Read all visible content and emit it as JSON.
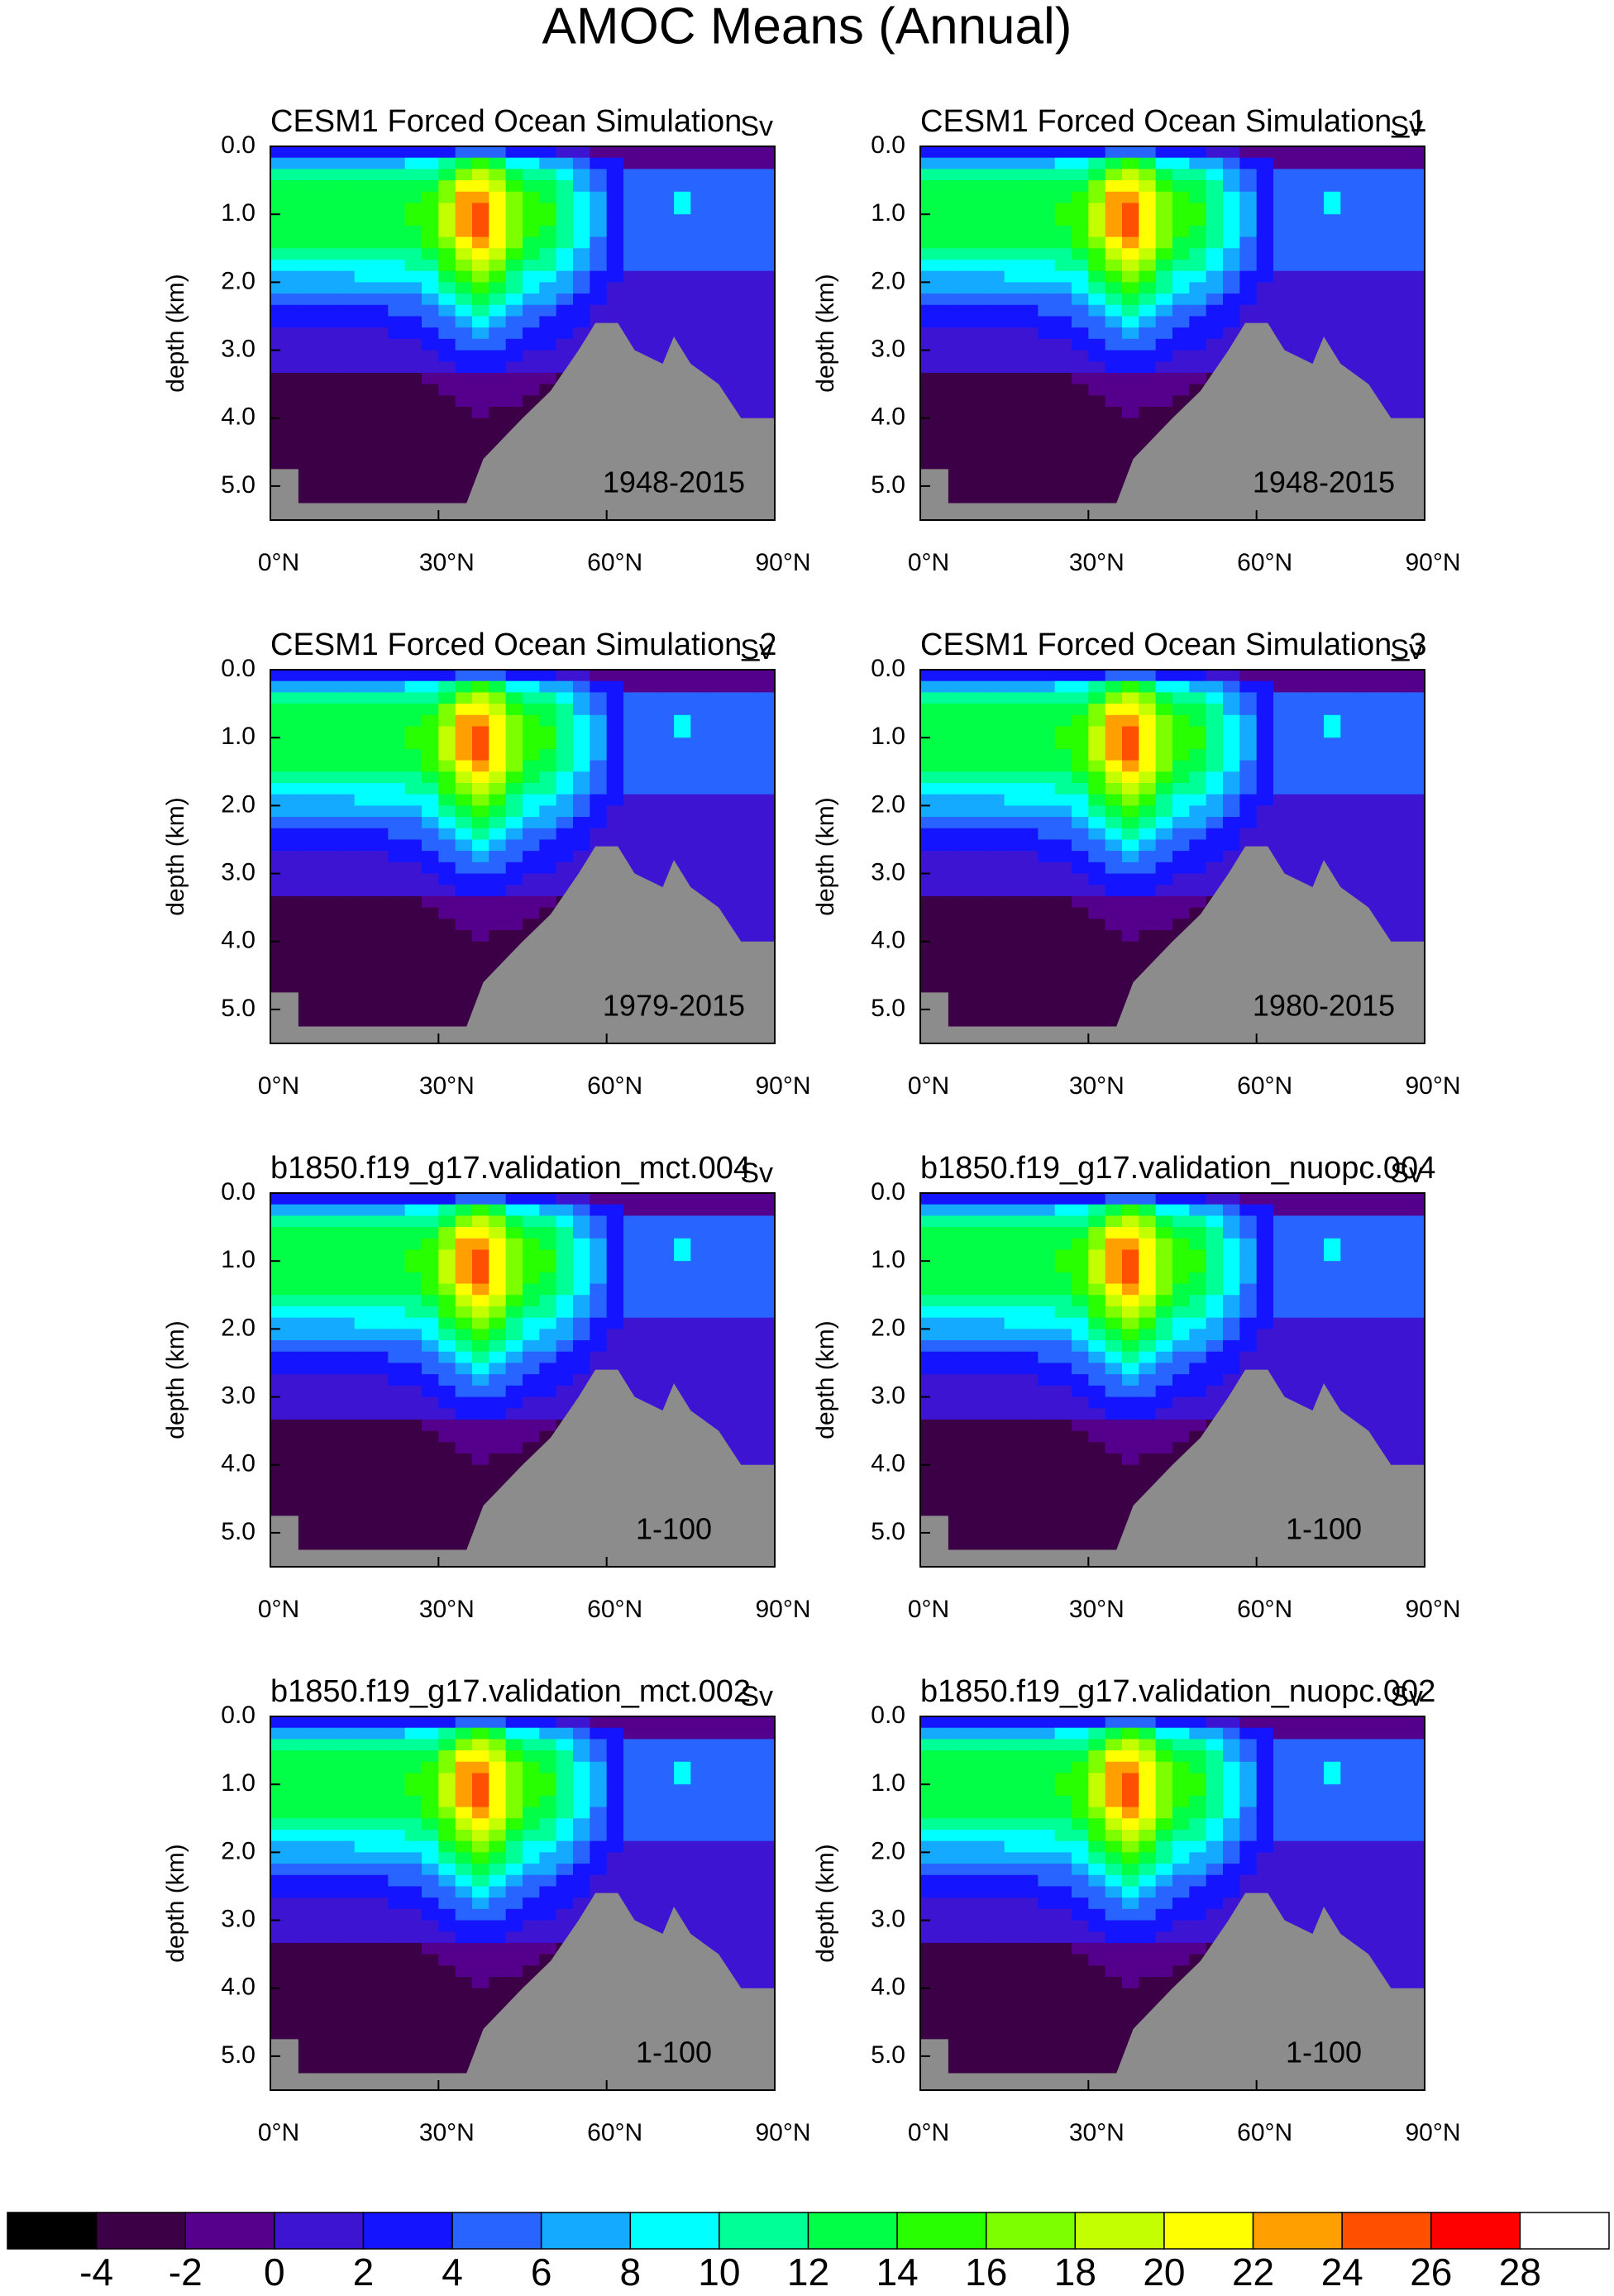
{
  "title": "AMOC Means (Annual)",
  "chart_data": [
    {
      "type": "contour",
      "title": "CESM1 Forced Ocean Simulation",
      "units": "Sv",
      "annotation": "1948-2015",
      "ylabel": "depth (km)",
      "xlim": [
        0,
        90
      ],
      "xticks": [
        {
          "value": 0,
          "label": "0°N"
        },
        {
          "value": 30,
          "label": "30°N"
        },
        {
          "value": 60,
          "label": "60°N"
        },
        {
          "value": 90,
          "label": "90°N"
        }
      ],
      "ylim": [
        5.5,
        0
      ],
      "yticks": [
        {
          "value": 0,
          "label": "0.0"
        },
        {
          "value": 1,
          "label": "1.0"
        },
        {
          "value": 2,
          "label": "2.0"
        },
        {
          "value": 3,
          "label": "3.0"
        },
        {
          "value": 4,
          "label": "4.0"
        },
        {
          "value": 5,
          "label": "5.0"
        }
      ]
    },
    {
      "type": "contour",
      "title": "CESM1 Forced Ocean Simulation_1",
      "units": "Sv",
      "annotation": "1948-2015",
      "ylabel": "depth (km)",
      "xlim": [
        0,
        90
      ],
      "xticks": [
        {
          "value": 0,
          "label": "0°N"
        },
        {
          "value": 30,
          "label": "30°N"
        },
        {
          "value": 60,
          "label": "60°N"
        },
        {
          "value": 90,
          "label": "90°N"
        }
      ],
      "ylim": [
        5.5,
        0
      ],
      "yticks": [
        {
          "value": 0,
          "label": "0.0"
        },
        {
          "value": 1,
          "label": "1.0"
        },
        {
          "value": 2,
          "label": "2.0"
        },
        {
          "value": 3,
          "label": "3.0"
        },
        {
          "value": 4,
          "label": "4.0"
        },
        {
          "value": 5,
          "label": "5.0"
        }
      ]
    },
    {
      "type": "contour",
      "title": "CESM1 Forced Ocean Simulation_2",
      "units": "Sv",
      "annotation": "1979-2015",
      "ylabel": "depth (km)",
      "xlim": [
        0,
        90
      ],
      "xticks": [
        {
          "value": 0,
          "label": "0°N"
        },
        {
          "value": 30,
          "label": "30°N"
        },
        {
          "value": 60,
          "label": "60°N"
        },
        {
          "value": 90,
          "label": "90°N"
        }
      ],
      "ylim": [
        5.5,
        0
      ],
      "yticks": [
        {
          "value": 0,
          "label": "0.0"
        },
        {
          "value": 1,
          "label": "1.0"
        },
        {
          "value": 2,
          "label": "2.0"
        },
        {
          "value": 3,
          "label": "3.0"
        },
        {
          "value": 4,
          "label": "4.0"
        },
        {
          "value": 5,
          "label": "5.0"
        }
      ]
    },
    {
      "type": "contour",
      "title": "CESM1 Forced Ocean Simulation_3",
      "units": "Sv",
      "annotation": "1980-2015",
      "ylabel": "depth (km)",
      "xlim": [
        0,
        90
      ],
      "xticks": [
        {
          "value": 0,
          "label": "0°N"
        },
        {
          "value": 30,
          "label": "30°N"
        },
        {
          "value": 60,
          "label": "60°N"
        },
        {
          "value": 90,
          "label": "90°N"
        }
      ],
      "ylim": [
        5.5,
        0
      ],
      "yticks": [
        {
          "value": 0,
          "label": "0.0"
        },
        {
          "value": 1,
          "label": "1.0"
        },
        {
          "value": 2,
          "label": "2.0"
        },
        {
          "value": 3,
          "label": "3.0"
        },
        {
          "value": 4,
          "label": "4.0"
        },
        {
          "value": 5,
          "label": "5.0"
        }
      ]
    },
    {
      "type": "contour",
      "title": "b1850.f19_g17.validation_mct.004",
      "units": "Sv",
      "annotation": "1-100",
      "ylabel": "depth (km)",
      "xlim": [
        0,
        90
      ],
      "xticks": [
        {
          "value": 0,
          "label": "0°N"
        },
        {
          "value": 30,
          "label": "30°N"
        },
        {
          "value": 60,
          "label": "60°N"
        },
        {
          "value": 90,
          "label": "90°N"
        }
      ],
      "ylim": [
        5.5,
        0
      ],
      "yticks": [
        {
          "value": 0,
          "label": "0.0"
        },
        {
          "value": 1,
          "label": "1.0"
        },
        {
          "value": 2,
          "label": "2.0"
        },
        {
          "value": 3,
          "label": "3.0"
        },
        {
          "value": 4,
          "label": "4.0"
        },
        {
          "value": 5,
          "label": "5.0"
        }
      ]
    },
    {
      "type": "contour",
      "title": "b1850.f19_g17.validation_nuopc.004",
      "units": "Sv",
      "annotation": "1-100",
      "ylabel": "depth (km)",
      "xlim": [
        0,
        90
      ],
      "xticks": [
        {
          "value": 0,
          "label": "0°N"
        },
        {
          "value": 30,
          "label": "30°N"
        },
        {
          "value": 60,
          "label": "60°N"
        },
        {
          "value": 90,
          "label": "90°N"
        }
      ],
      "ylim": [
        5.5,
        0
      ],
      "yticks": [
        {
          "value": 0,
          "label": "0.0"
        },
        {
          "value": 1,
          "label": "1.0"
        },
        {
          "value": 2,
          "label": "2.0"
        },
        {
          "value": 3,
          "label": "3.0"
        },
        {
          "value": 4,
          "label": "4.0"
        },
        {
          "value": 5,
          "label": "5.0"
        }
      ]
    },
    {
      "type": "contour",
      "title": "b1850.f19_g17.validation_mct.002",
      "units": "Sv",
      "annotation": "1-100",
      "ylabel": "depth (km)",
      "xlim": [
        0,
        90
      ],
      "xticks": [
        {
          "value": 0,
          "label": "0°N"
        },
        {
          "value": 30,
          "label": "30°N"
        },
        {
          "value": 60,
          "label": "60°N"
        },
        {
          "value": 90,
          "label": "90°N"
        }
      ],
      "ylim": [
        5.5,
        0
      ],
      "yticks": [
        {
          "value": 0,
          "label": "0.0"
        },
        {
          "value": 1,
          "label": "1.0"
        },
        {
          "value": 2,
          "label": "2.0"
        },
        {
          "value": 3,
          "label": "3.0"
        },
        {
          "value": 4,
          "label": "4.0"
        },
        {
          "value": 5,
          "label": "5.0"
        }
      ]
    },
    {
      "type": "contour",
      "title": "b1850.f19_g17.validation_nuopc.002",
      "units": "Sv",
      "annotation": "1-100",
      "ylabel": "depth (km)",
      "xlim": [
        0,
        90
      ],
      "xticks": [
        {
          "value": 0,
          "label": "0°N"
        },
        {
          "value": 30,
          "label": "30°N"
        },
        {
          "value": 60,
          "label": "60°N"
        },
        {
          "value": 90,
          "label": "90°N"
        }
      ],
      "ylim": [
        5.5,
        0
      ],
      "yticks": [
        {
          "value": 0,
          "label": "0.0"
        },
        {
          "value": 1,
          "label": "1.0"
        },
        {
          "value": 2,
          "label": "2.0"
        },
        {
          "value": 3,
          "label": "3.0"
        },
        {
          "value": 4,
          "label": "4.0"
        },
        {
          "value": 5,
          "label": "5.0"
        }
      ]
    },
    {
      "type": "colorbar",
      "levels": [
        -4,
        -2,
        0,
        2,
        4,
        6,
        8,
        10,
        12,
        14,
        16,
        18,
        20,
        22,
        24,
        26,
        28
      ],
      "colors": [
        "#000000",
        "#3c0046",
        "#55008c",
        "#3c14d2",
        "#1414ff",
        "#2864ff",
        "#14aaff",
        "#00ffff",
        "#00ff96",
        "#00ff46",
        "#28ff00",
        "#7dff00",
        "#c3ff00",
        "#ffff00",
        "#ffa000",
        "#ff5000",
        "#ff0000",
        "#ffffff"
      ]
    }
  ]
}
